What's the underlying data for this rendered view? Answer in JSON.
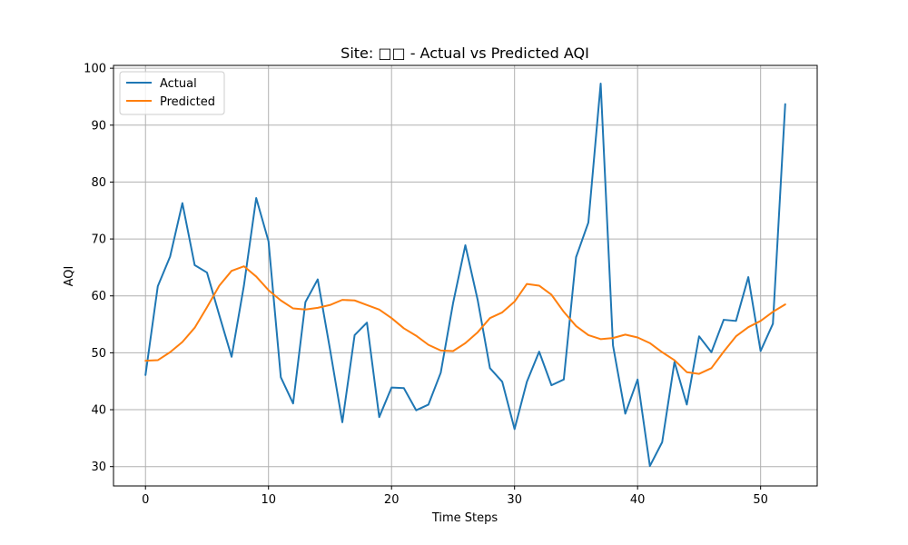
{
  "chart_data": {
    "type": "line",
    "title": "Site: □□ - Actual vs Predicted AQI",
    "xlabel": "Time Steps",
    "ylabel": "AQI",
    "xlim": [
      -2.6,
      54.6
    ],
    "ylim": [
      26.6,
      100.5
    ],
    "x_ticks": [
      0,
      10,
      20,
      30,
      40,
      50
    ],
    "y_ticks": [
      30,
      40,
      50,
      60,
      70,
      80,
      90,
      100
    ],
    "grid": true,
    "legend_position": "upper-left",
    "x": [
      0,
      1,
      2,
      3,
      4,
      5,
      6,
      7,
      8,
      9,
      10,
      11,
      12,
      13,
      14,
      15,
      16,
      17,
      18,
      19,
      20,
      21,
      22,
      23,
      24,
      25,
      26,
      27,
      28,
      29,
      30,
      31,
      32,
      33,
      34,
      35,
      36,
      37,
      38,
      39,
      40,
      41,
      42,
      43,
      44,
      45,
      46,
      47,
      48,
      49,
      50,
      51,
      52
    ],
    "series": [
      {
        "name": "Actual",
        "color": "#1f77b4",
        "values": [
          46.1,
          61.7,
          66.9,
          76.3,
          65.4,
          64.1,
          56.6,
          49.3,
          61.8,
          77.2,
          69.6,
          45.7,
          41.1,
          58.9,
          62.9,
          50.6,
          37.8,
          53.1,
          55.3,
          38.7,
          43.9,
          43.8,
          39.9,
          40.9,
          46.5,
          58.7,
          68.9,
          59.3,
          47.3,
          44.9,
          36.6,
          44.9,
          50.2,
          44.3,
          45.3,
          66.8,
          72.9,
          97.3,
          51.3,
          39.3,
          45.3,
          30.1,
          34.3,
          48.4,
          40.9,
          52.9,
          50.1,
          55.8,
          55.6,
          63.3,
          50.3,
          55.1,
          93.7
        ]
      },
      {
        "name": "Predicted",
        "color": "#ff7f0e",
        "values": [
          48.6,
          48.7,
          50.1,
          51.9,
          54.4,
          58.0,
          61.8,
          64.4,
          65.2,
          63.4,
          61.0,
          59.2,
          57.8,
          57.6,
          57.9,
          58.4,
          59.3,
          59.2,
          58.4,
          57.6,
          56.1,
          54.3,
          53.0,
          51.4,
          50.4,
          50.3,
          51.7,
          53.6,
          56.1,
          57.1,
          59.0,
          62.1,
          61.8,
          60.2,
          57.2,
          54.7,
          53.1,
          52.4,
          52.6,
          53.2,
          52.7,
          51.7,
          50.1,
          48.7,
          46.6,
          46.3,
          47.3,
          50.2,
          52.9,
          54.5,
          55.6,
          57.2,
          58.5
        ]
      }
    ]
  }
}
